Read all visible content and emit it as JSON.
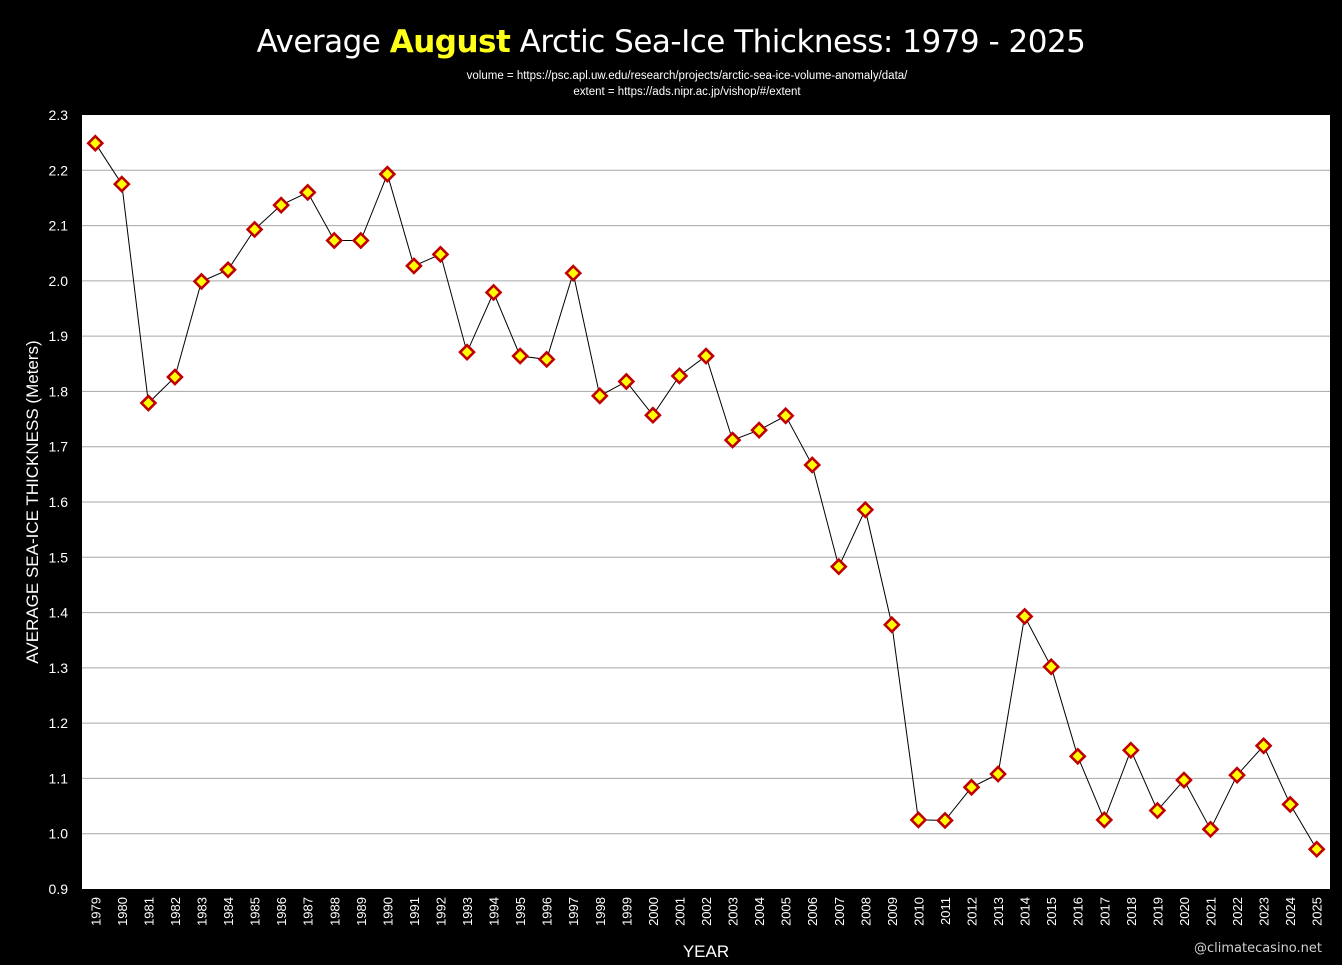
{
  "chart_data": {
    "type": "line",
    "title": {
      "prefix": "Average ",
      "highlight": "August",
      "suffix": " Arctic Sea-Ice Thickness: 1979 - 2025"
    },
    "subtitle_lines": [
      "volume = https://psc.apl.uw.edu/research/projects/arctic-sea-ice-volume-anomaly/data/",
      "extent = https://ads.nipr.ac.jp/vishop/#/extent"
    ],
    "xlabel": "YEAR",
    "ylabel": "AVERAGE SEA-ICE THICKNESS (Meters)",
    "ylim": [
      0.9,
      2.3
    ],
    "yticks": [
      "0.9",
      "1.0",
      "1.1",
      "1.2",
      "1.3",
      "1.4",
      "1.5",
      "1.6",
      "1.7",
      "1.8",
      "1.9",
      "2.0",
      "2.1",
      "2.2",
      "2.3"
    ],
    "grid": true,
    "legend": "none",
    "categories": [
      "1979",
      "1980",
      "1981",
      "1982",
      "1983",
      "1984",
      "1985",
      "1986",
      "1987",
      "1988",
      "1989",
      "1990",
      "1991",
      "1992",
      "1993",
      "1994",
      "1995",
      "1996",
      "1997",
      "1998",
      "1999",
      "2000",
      "2001",
      "2002",
      "2003",
      "2004",
      "2005",
      "2006",
      "2007",
      "2008",
      "2009",
      "2010",
      "2011",
      "2012",
      "2013",
      "2014",
      "2015",
      "2016",
      "2017",
      "2018",
      "2019",
      "2020",
      "2021",
      "2022",
      "2023",
      "2024",
      "2025"
    ],
    "series": [
      {
        "name": "Average August Sea-Ice Thickness",
        "values": [
          2.249,
          2.175,
          1.779,
          1.826,
          1.999,
          2.02,
          2.093,
          2.137,
          2.16,
          2.073,
          2.073,
          2.193,
          2.027,
          2.048,
          1.871,
          1.979,
          1.864,
          1.858,
          2.014,
          1.792,
          1.818,
          1.757,
          1.828,
          1.864,
          1.712,
          1.73,
          1.756,
          1.667,
          1.483,
          1.586,
          1.378,
          1.025,
          1.024,
          1.084,
          1.108,
          1.393,
          1.302,
          1.14,
          1.025,
          1.151,
          1.042,
          1.097,
          1.008,
          1.106,
          1.159,
          1.053,
          0.972
        ],
        "marker": "diamond",
        "marker_fill": "#ffff00",
        "marker_edge": "#c00000",
        "line_color": "#000000"
      }
    ],
    "colors": {
      "background": "#000000",
      "plot_background": "#ffffff",
      "gridline": "#a6a6a6",
      "title_highlight": "#ffff1a"
    }
  },
  "watermark": "@climatecasino.net"
}
